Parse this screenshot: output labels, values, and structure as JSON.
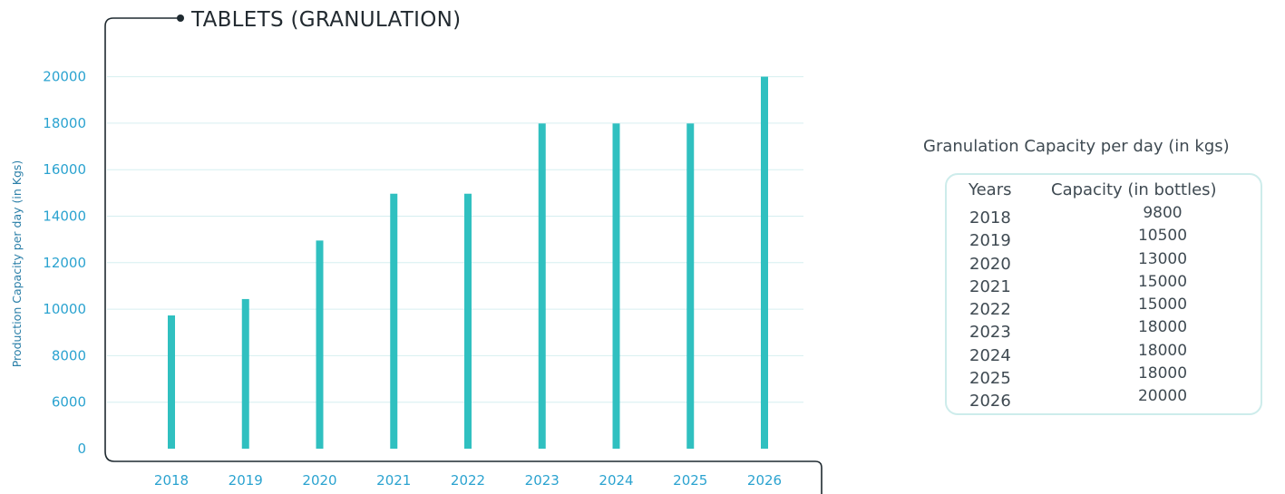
{
  "chart_data": {
    "type": "bar",
    "title": "TABLETS (GRANULATION)",
    "xlabel": "",
    "ylabel": "Production Capacity per day (in Kgs)",
    "categories": [
      "2018",
      "2019",
      "2020",
      "2021",
      "2022",
      "2023",
      "2024",
      "2025",
      "2026"
    ],
    "values": [
      9800,
      10500,
      13000,
      15000,
      15000,
      18000,
      18000,
      18000,
      20000
    ],
    "ytick_labels": [
      "0",
      "6000",
      "8000",
      "10000",
      "12000",
      "14000",
      "16000",
      "18000",
      "20000"
    ],
    "ylim": [
      0,
      20000
    ],
    "grid": true,
    "legend": "none",
    "bar_color": "#30c0c0",
    "tick_color": "#2ba3d0"
  },
  "table": {
    "heading": "Granulation Capacity per day (in kgs)",
    "col_years": "Years",
    "col_capacity": "Capacity (in bottles)",
    "rows": [
      {
        "year": "2018",
        "capacity": "9800"
      },
      {
        "year": "2019",
        "capacity": "10500"
      },
      {
        "year": "2020",
        "capacity": "13000"
      },
      {
        "year": "2021",
        "capacity": "15000"
      },
      {
        "year": "2022",
        "capacity": "15000"
      },
      {
        "year": "2023",
        "capacity": "18000"
      },
      {
        "year": "2024",
        "capacity": "18000"
      },
      {
        "year": "2025",
        "capacity": "18000"
      },
      {
        "year": "2026",
        "capacity": "20000"
      }
    ]
  }
}
